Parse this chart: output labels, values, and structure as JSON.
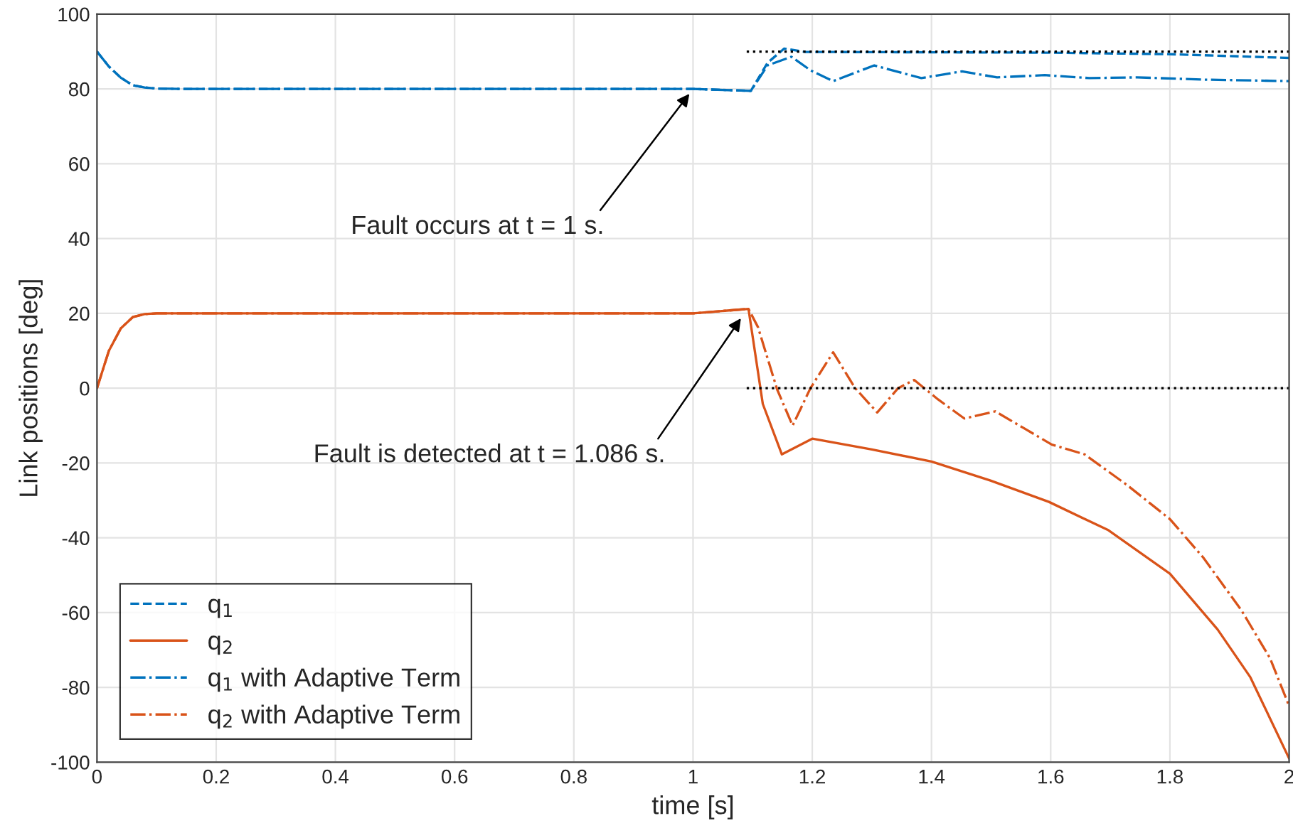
{
  "chart_data": {
    "type": "line",
    "xlabel": "time [s]",
    "ylabel": "Link positions [deg]",
    "xlim": [
      0,
      2
    ],
    "ylim": [
      -100,
      100
    ],
    "xticks": [
      0,
      0.2,
      0.4,
      0.6,
      0.8,
      1,
      1.2,
      1.4,
      1.6,
      1.8,
      2
    ],
    "yticks": [
      -100,
      -80,
      -60,
      -40,
      -20,
      0,
      20,
      40,
      60,
      80,
      100
    ],
    "grid": true,
    "legend": "bottom left",
    "series": [
      {
        "name": "q$_{1}$",
        "color": "#0072bd",
        "line_style": "dashed",
        "x": [
          0,
          0.02,
          0.04,
          0.06,
          0.08,
          0.1,
          0.15,
          0.5,
          1.0,
          1.097,
          1.125,
          1.153,
          1.189,
          1.4,
          1.6,
          1.8,
          2.0
        ],
        "values": [
          90,
          86,
          83,
          81,
          80.4,
          80.1,
          80,
          80,
          80,
          79.5,
          87,
          90.8,
          89.9,
          89.8,
          89.7,
          89.3,
          88.3
        ]
      },
      {
        "name": "q$_{2}$",
        "color": "#d95319",
        "line_style": "solid",
        "x": [
          0,
          0.02,
          0.04,
          0.06,
          0.08,
          0.1,
          0.5,
          1.0,
          1.093,
          1.117,
          1.149,
          1.2,
          1.3,
          1.4,
          1.499,
          1.597,
          1.697,
          1.8,
          1.88,
          1.935,
          2.0
        ],
        "values": [
          0,
          10,
          16,
          19,
          19.8,
          20,
          20,
          20,
          21.2,
          -4.2,
          -17.7,
          -13.5,
          -16.4,
          -19.6,
          -24.7,
          -30.4,
          -38,
          -49.6,
          -64.5,
          -77.3,
          -99
        ]
      },
      {
        "name": "q$_{1}$ with Adaptive Term",
        "color": "#0072bd",
        "line_style": "dashdot",
        "x": [
          0,
          0.02,
          0.04,
          0.06,
          0.08,
          0.1,
          0.15,
          0.5,
          1.0,
          1.097,
          1.125,
          1.165,
          1.197,
          1.235,
          1.304,
          1.383,
          1.451,
          1.51,
          1.59,
          1.665,
          1.745,
          1.856,
          2.0
        ],
        "values": [
          90,
          86,
          83,
          81,
          80.4,
          80.1,
          80,
          80,
          80,
          79.5,
          86.3,
          88.6,
          85,
          82.1,
          86.3,
          82.9,
          84.7,
          83.1,
          83.7,
          82.9,
          83.1,
          82.5,
          82.1
        ]
      },
      {
        "name": "q$_{2}$ with Adaptive Term",
        "color": "#d95319",
        "line_style": "dashdot",
        "x": [
          0,
          0.02,
          0.04,
          0.06,
          0.08,
          0.1,
          0.5,
          1.0,
          1.093,
          1.109,
          1.141,
          1.167,
          1.197,
          1.235,
          1.272,
          1.309,
          1.344,
          1.371,
          1.411,
          1.455,
          1.507,
          1.554,
          1.602,
          1.657,
          1.729,
          1.8,
          1.856,
          1.92,
          1.968,
          2.0
        ],
        "values": [
          0,
          10,
          16,
          19,
          19.8,
          20,
          20,
          20,
          21.2,
          16.3,
          -0.3,
          -10,
          0,
          9.6,
          0,
          -6.5,
          0,
          2.2,
          -3,
          -8.1,
          -6.2,
          -10.6,
          -15.1,
          -17.7,
          -26,
          -35,
          -45.3,
          -59.4,
          -72.2,
          -85
        ]
      },
      {
        "color": "#000000",
        "line_style": "dotted",
        "x": [
          1.09,
          2.0
        ],
        "values": [
          90,
          90
        ]
      },
      {
        "color": "#000000",
        "line_style": "dotted",
        "x": [
          1.09,
          2.0
        ],
        "values": [
          0,
          0
        ]
      }
    ],
    "annotations": [
      {
        "text": "Fault occurs at t = 1 s.",
        "x": 1.0,
        "y": 80
      },
      {
        "text": "Fault is detected at t = 1.086 s.",
        "x": 1.086,
        "y": 20
      }
    ]
  }
}
